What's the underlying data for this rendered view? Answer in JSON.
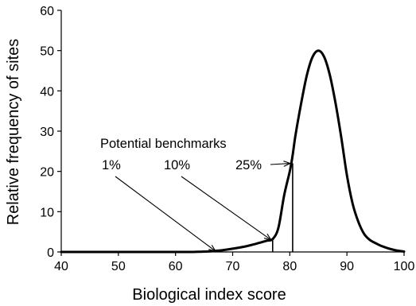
{
  "chart_data": {
    "type": "line",
    "xlabel": "Biological index score",
    "ylabel": "Relative frequency of sites",
    "xlim": [
      40,
      100
    ],
    "ylim": [
      0,
      60
    ],
    "xticks": [
      40,
      50,
      60,
      70,
      80,
      90,
      100
    ],
    "yticks": [
      0,
      10,
      20,
      30,
      40,
      50,
      60
    ],
    "grid": false,
    "series": [
      {
        "x": [
          40,
          60,
          64,
          66,
          68,
          70,
          72,
          74,
          76,
          77,
          78,
          79,
          80,
          80.5,
          81,
          82,
          83,
          84,
          85,
          86,
          87,
          88,
          89,
          90,
          91,
          92,
          93,
          94,
          95,
          96,
          97,
          98,
          99,
          100
        ],
        "y": [
          0,
          0,
          0.05,
          0.15,
          0.4,
          0.8,
          1.3,
          2,
          2.8,
          3.2,
          6,
          14,
          20,
          24,
          29,
          37,
          44,
          48.5,
          50,
          48.5,
          44,
          37,
          28.5,
          19,
          12,
          7.5,
          4.5,
          3,
          2.2,
          1.5,
          1,
          0.6,
          0.3,
          0.1
        ]
      }
    ],
    "annotations": {
      "heading": "Potential benchmarks",
      "benchmarks": [
        {
          "label": "1%",
          "x": 67,
          "y": 0
        },
        {
          "label": "10%",
          "x": 77,
          "y": 3.2
        },
        {
          "label": "25%",
          "x": 80.5,
          "y": 22
        }
      ]
    }
  }
}
